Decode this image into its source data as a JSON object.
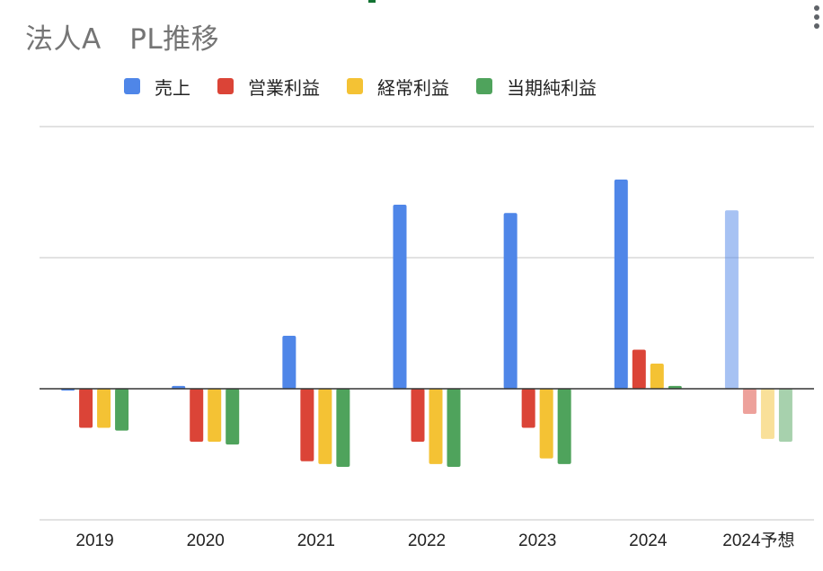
{
  "chart_data": {
    "type": "bar",
    "title": "法人A　PL推移",
    "categories": [
      "2019",
      "2020",
      "2021",
      "2022",
      "2023",
      "2024",
      "2024予想"
    ],
    "series": [
      {
        "name": "売上",
        "color": "#4f86e8",
        "values": [
          0,
          1,
          19,
          66,
          63,
          75,
          64
        ]
      },
      {
        "name": "営業利益",
        "color": "#db4437",
        "values": [
          -14,
          -19,
          -26,
          -19,
          -14,
          14,
          -9
        ]
      },
      {
        "name": "経常利益",
        "color": "#f4c234",
        "values": [
          -14,
          -19,
          -27,
          -27,
          -25,
          9,
          -18
        ]
      },
      {
        "name": "当期純利益",
        "color": "#4fa35c",
        "values": [
          -15,
          -20,
          -28,
          -28,
          -27,
          1,
          -19
        ]
      }
    ],
    "forecast_categories": [
      "2024予想"
    ],
    "ylim": [
      -47,
      94
    ],
    "gridlines": [
      -47,
      0,
      47,
      94
    ],
    "legend_position": "top"
  }
}
